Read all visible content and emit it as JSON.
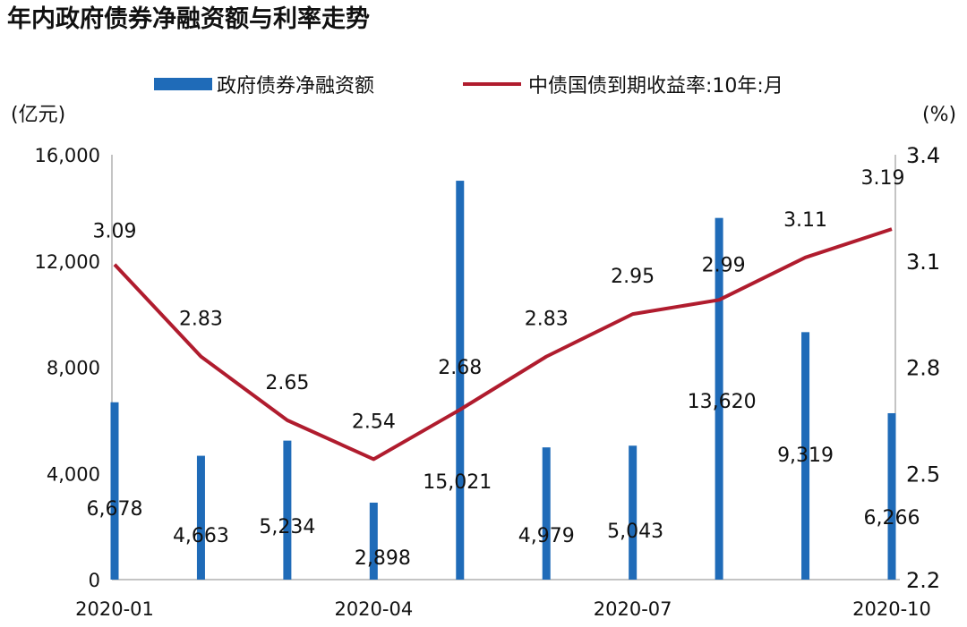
{
  "chart_data": {
    "type": "bar+line",
    "title": "年内政府债券净融资额与利率走势",
    "categories": [
      "2020-01",
      "2020-02",
      "2020-03",
      "2020-04",
      "2020-05",
      "2020-06",
      "2020-07",
      "2020-08",
      "2020-09",
      "2020-10"
    ],
    "x_tick_labels": [
      "2020-01",
      "2020-04",
      "2020-07",
      "2020-10"
    ],
    "series": [
      {
        "name": "政府债券净融资额",
        "type": "bar",
        "axis": "left",
        "color": "#1f6bb8",
        "values": [
          6678,
          4663,
          5234,
          2898,
          15021,
          4979,
          5043,
          13620,
          9319,
          6266
        ],
        "labels": [
          "6,678",
          "4,663",
          "5,234",
          "2,898",
          "15,021",
          "4,979",
          "5,043",
          "13,620",
          "9,319",
          "6,266"
        ]
      },
      {
        "name": "中债国债到期收益率:10年:月",
        "type": "line",
        "axis": "right",
        "color": "#b01c2e",
        "values": [
          3.09,
          2.83,
          2.65,
          2.54,
          2.68,
          2.83,
          2.95,
          2.99,
          3.11,
          3.19
        ],
        "labels": [
          "3.09",
          "2.83",
          "2.65",
          "2.54",
          "2.68",
          "2.83",
          "2.95",
          "2.99",
          "3.11",
          "3.19"
        ]
      }
    ],
    "ylabel_left": "(亿元)",
    "ylabel_right": "(%)",
    "ylim_left": [
      0,
      16000
    ],
    "ylim_right": [
      2.2,
      3.4
    ],
    "yticks_left": [
      "0",
      "4,000",
      "8,000",
      "12,000",
      "16,000"
    ],
    "yticks_right": [
      "2.2",
      "2.5",
      "2.8",
      "3.1",
      "3.4"
    ],
    "legend_position": "top",
    "grid": false
  }
}
